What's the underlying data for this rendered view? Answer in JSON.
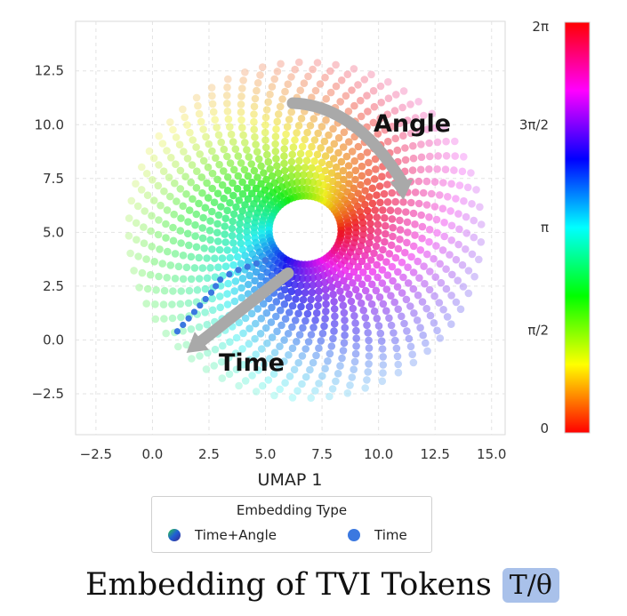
{
  "chart_data": {
    "type": "scatter",
    "xlabel": "UMAP 1",
    "ylabel": "",
    "xlim": [
      -3.4,
      15.6
    ],
    "ylim": [
      -4.4,
      14.8
    ],
    "x_ticks": [
      "−2.5",
      "0.0",
      "2.5",
      "5.0",
      "7.5",
      "10.0",
      "12.5",
      "15.0"
    ],
    "x_tick_values": [
      -2.5,
      0.0,
      2.5,
      5.0,
      7.5,
      10.0,
      12.5,
      15.0
    ],
    "y_ticks": [
      "−2.5",
      "0.0",
      "2.5",
      "5.0",
      "7.5",
      "10.0",
      "12.5"
    ],
    "y_tick_values": [
      -2.5,
      0.0,
      2.5,
      5.0,
      7.5,
      10.0,
      12.5
    ],
    "grid": true,
    "spiral": {
      "center": [
        6.75,
        5.1
      ],
      "inner_radius": 1.6,
      "outer_radius": 7.8,
      "spokes": 60,
      "points_per_spoke": 20,
      "twist_rad": 1.5
    },
    "series": [
      {
        "name": "Time+Angle",
        "color": "hue by angle"
      },
      {
        "name": "Time",
        "color": "#3b78e0",
        "points": [
          [
            5.0,
            3.7
          ],
          [
            4.6,
            3.55
          ],
          [
            4.2,
            3.4
          ],
          [
            3.8,
            3.25
          ],
          [
            3.4,
            3.05
          ],
          [
            3.0,
            2.8
          ],
          [
            2.8,
            2.5
          ],
          [
            2.6,
            2.2
          ],
          [
            2.35,
            1.9
          ],
          [
            2.1,
            1.6
          ],
          [
            1.85,
            1.3
          ],
          [
            1.6,
            1.0
          ],
          [
            1.35,
            0.7
          ],
          [
            1.1,
            0.4
          ]
        ]
      }
    ],
    "colorbar": {
      "ticks": [
        "0",
        "π/2",
        "π",
        "3π/2",
        "2π"
      ],
      "tick_values": [
        0,
        1.5708,
        3.1416,
        4.7124,
        6.2832
      ]
    },
    "annotations": [
      {
        "text": "Angle",
        "x": 11.5,
        "y": 9.5
      },
      {
        "text": "Time",
        "x": 4.7,
        "y": -1.75
      }
    ],
    "arrows": [
      {
        "label": "Angle",
        "path": [
          [
            6.2,
            11.0
          ],
          [
            9.0,
            10.9
          ],
          [
            11.1,
            6.5
          ]
        ]
      },
      {
        "label": "Time",
        "path": [
          [
            6.0,
            3.1
          ],
          [
            1.5,
            -0.6
          ]
        ]
      }
    ]
  },
  "legend": {
    "title": "Embedding Type",
    "items": [
      {
        "label": "Time+Angle"
      },
      {
        "label": "Time",
        "color": "#3b78e0"
      }
    ]
  },
  "footer": {
    "title": "Embedding of TVI Tokens",
    "badge": "T/θ"
  }
}
